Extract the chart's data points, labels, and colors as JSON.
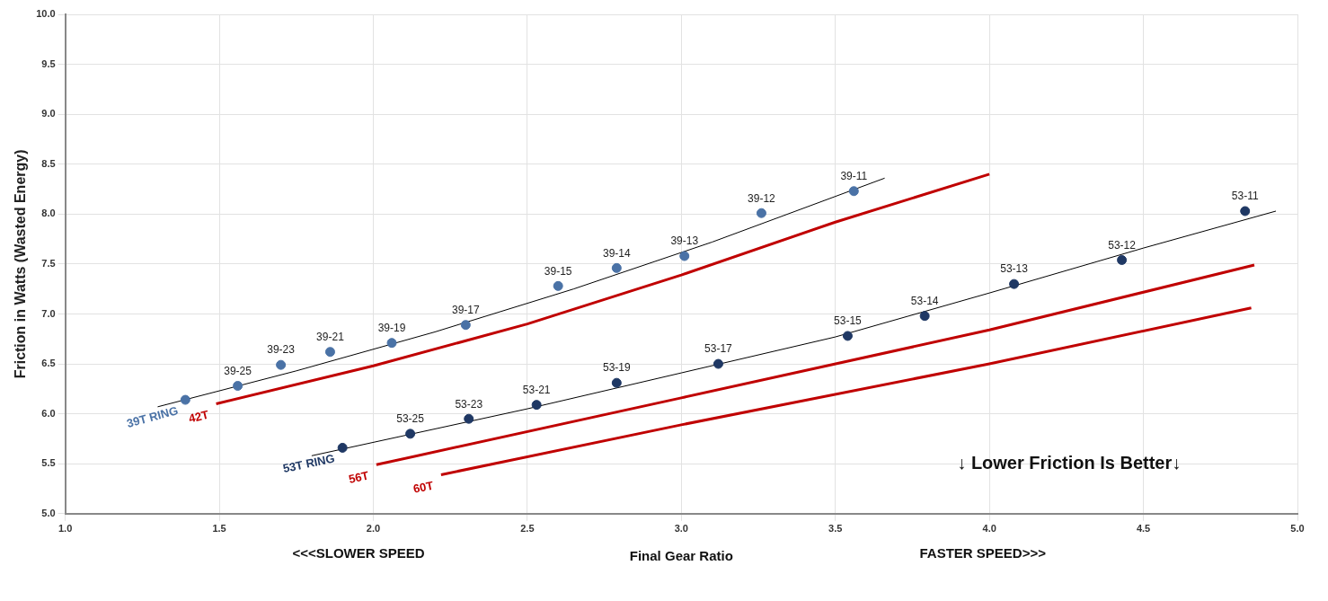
{
  "chart_data": {
    "type": "scatter",
    "xlabel": "Final Gear Ratio",
    "ylabel": "Friction in Watts (Wasted Energy)",
    "xlim": [
      1,
      5
    ],
    "ylim": [
      5,
      10
    ],
    "xticks": [
      {
        "value": 1,
        "label": "1.0"
      },
      {
        "value": 1.5,
        "label": "1.5"
      },
      {
        "value": 2,
        "label": "2.0"
      },
      {
        "value": 2.5,
        "label": "2.5"
      },
      {
        "value": 3,
        "label": "3.0"
      },
      {
        "value": 3.5,
        "label": "3.5"
      },
      {
        "value": 4,
        "label": "4.0"
      },
      {
        "value": 4.5,
        "label": "4.5"
      },
      {
        "value": 5,
        "label": "5.0"
      }
    ],
    "yticks": [
      {
        "value": 5,
        "label": "5.0"
      },
      {
        "value": 5.5,
        "label": "5.5"
      },
      {
        "value": 6,
        "label": "6.0"
      },
      {
        "value": 6.5,
        "label": "6.5"
      },
      {
        "value": 7,
        "label": "7.0"
      },
      {
        "value": 7.5,
        "label": "7.5"
      },
      {
        "value": 8,
        "label": "8.0"
      },
      {
        "value": 8.5,
        "label": "8.5"
      },
      {
        "value": 9,
        "label": "9.0"
      },
      {
        "value": 9.5,
        "label": "9.5"
      },
      {
        "value": 10,
        "label": "10.0"
      }
    ],
    "grid": true,
    "legend": false,
    "marker": "circle",
    "annotations": [
      "<<<SLOWER SPEED",
      "FASTER SPEED>>>",
      "↓ Lower Friction Is Better↓"
    ],
    "series": [
      {
        "name": "39T RING",
        "color": "#4a72a6",
        "x": [
          1.39,
          1.56,
          1.7,
          1.86,
          2.06,
          2.3,
          2.6,
          2.79,
          3.01,
          3.26,
          3.56
        ],
        "values": [
          6.14,
          6.28,
          6.49,
          6.62,
          6.71,
          6.89,
          7.28,
          7.46,
          7.58,
          8.01,
          8.23
        ],
        "value_labels": [
          null,
          "39-25",
          "39-23",
          "39-21",
          "39-19",
          "39-17",
          "39-15",
          "39-14",
          "39-13",
          "39-12",
          "39-11"
        ]
      },
      {
        "type": "line",
        "marker": "none",
        "color": "#000000",
        "x": [
          1.3,
          1.75,
          2.2,
          2.65,
          3.1,
          3.66
        ],
        "values": [
          6.07,
          6.43,
          6.82,
          7.25,
          7.72,
          8.36
        ]
      },
      {
        "name": "42T",
        "type": "line",
        "marker": "none",
        "color": "#c00000",
        "x": [
          1.49,
          2.0,
          2.5,
          3.0,
          3.5,
          4.0
        ],
        "values": [
          6.1,
          6.48,
          6.9,
          7.39,
          7.92,
          8.4
        ]
      },
      {
        "name": "53T RING",
        "color": "#1f3864",
        "x": [
          1.9,
          2.12,
          2.31,
          2.53,
          2.79,
          3.12,
          3.54,
          3.79,
          4.08,
          4.43,
          4.83
        ],
        "values": [
          5.66,
          5.8,
          5.95,
          6.09,
          6.31,
          6.5,
          6.78,
          6.98,
          7.3,
          7.54,
          8.03
        ],
        "value_labels": [
          null,
          "53-25",
          "53-23",
          "53-21",
          "53-19",
          "53-17",
          "53-15",
          "53-14",
          "53-13",
          "53-12",
          "53-11"
        ]
      },
      {
        "type": "line",
        "marker": "none",
        "color": "#000000",
        "x": [
          1.8,
          2.5,
          3.0,
          3.5,
          4.0,
          4.5,
          4.93
        ],
        "values": [
          5.58,
          6.05,
          6.41,
          6.77,
          7.21,
          7.66,
          8.03
        ]
      },
      {
        "name": "56T",
        "type": "line",
        "marker": "none",
        "color": "#c00000",
        "x": [
          2.01,
          3.0,
          4.0,
          4.86
        ],
        "values": [
          5.49,
          6.16,
          6.84,
          7.49
        ]
      },
      {
        "name": "60T",
        "type": "line",
        "marker": "none",
        "color": "#c00000",
        "x": [
          2.22,
          3.0,
          4.0,
          4.85
        ],
        "values": [
          5.39,
          5.89,
          6.5,
          7.06
        ]
      }
    ]
  }
}
